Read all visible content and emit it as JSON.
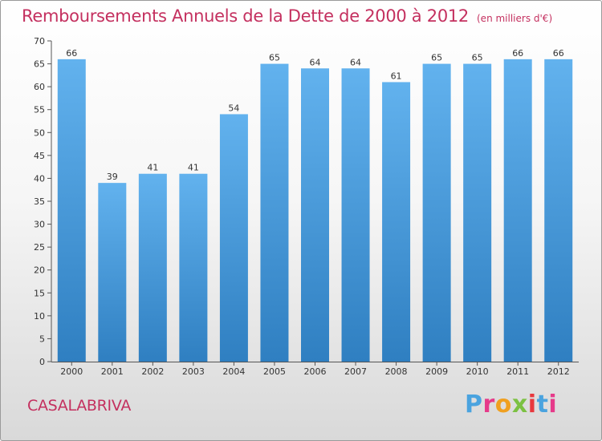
{
  "header": {
    "title": "Remboursements Annuels de la Dette de 2000 à 2012",
    "unit": "(en milliers d'€)"
  },
  "footer": {
    "commune": "CASALABRIVA",
    "logo_letters": [
      "P",
      "r",
      "o",
      "x",
      "i",
      "t",
      "i"
    ]
  },
  "colors": {
    "title": "#c4305f",
    "bar_top": "#62b2ee",
    "bar_bottom": "#2f7fc1",
    "logo": [
      "#4aa3df",
      "#e63a8a",
      "#f0a020",
      "#7cc142",
      "#e8383d",
      "#4aa3df",
      "#e63a8a"
    ]
  },
  "chart_data": {
    "type": "bar",
    "title": "Remboursements Annuels de la Dette de 2000 à 2012",
    "ylabel": "en milliers d'€",
    "categories": [
      "2000",
      "2001",
      "2002",
      "2003",
      "2004",
      "2005",
      "2006",
      "2007",
      "2008",
      "2009",
      "2010",
      "2011",
      "2012"
    ],
    "values": [
      66,
      39,
      41,
      41,
      54,
      65,
      64,
      64,
      61,
      65,
      65,
      66,
      66
    ],
    "ylim": [
      0,
      70
    ],
    "yticks": [
      0,
      5,
      10,
      15,
      20,
      25,
      30,
      35,
      40,
      45,
      50,
      55,
      60,
      65,
      70
    ],
    "grid": false
  }
}
